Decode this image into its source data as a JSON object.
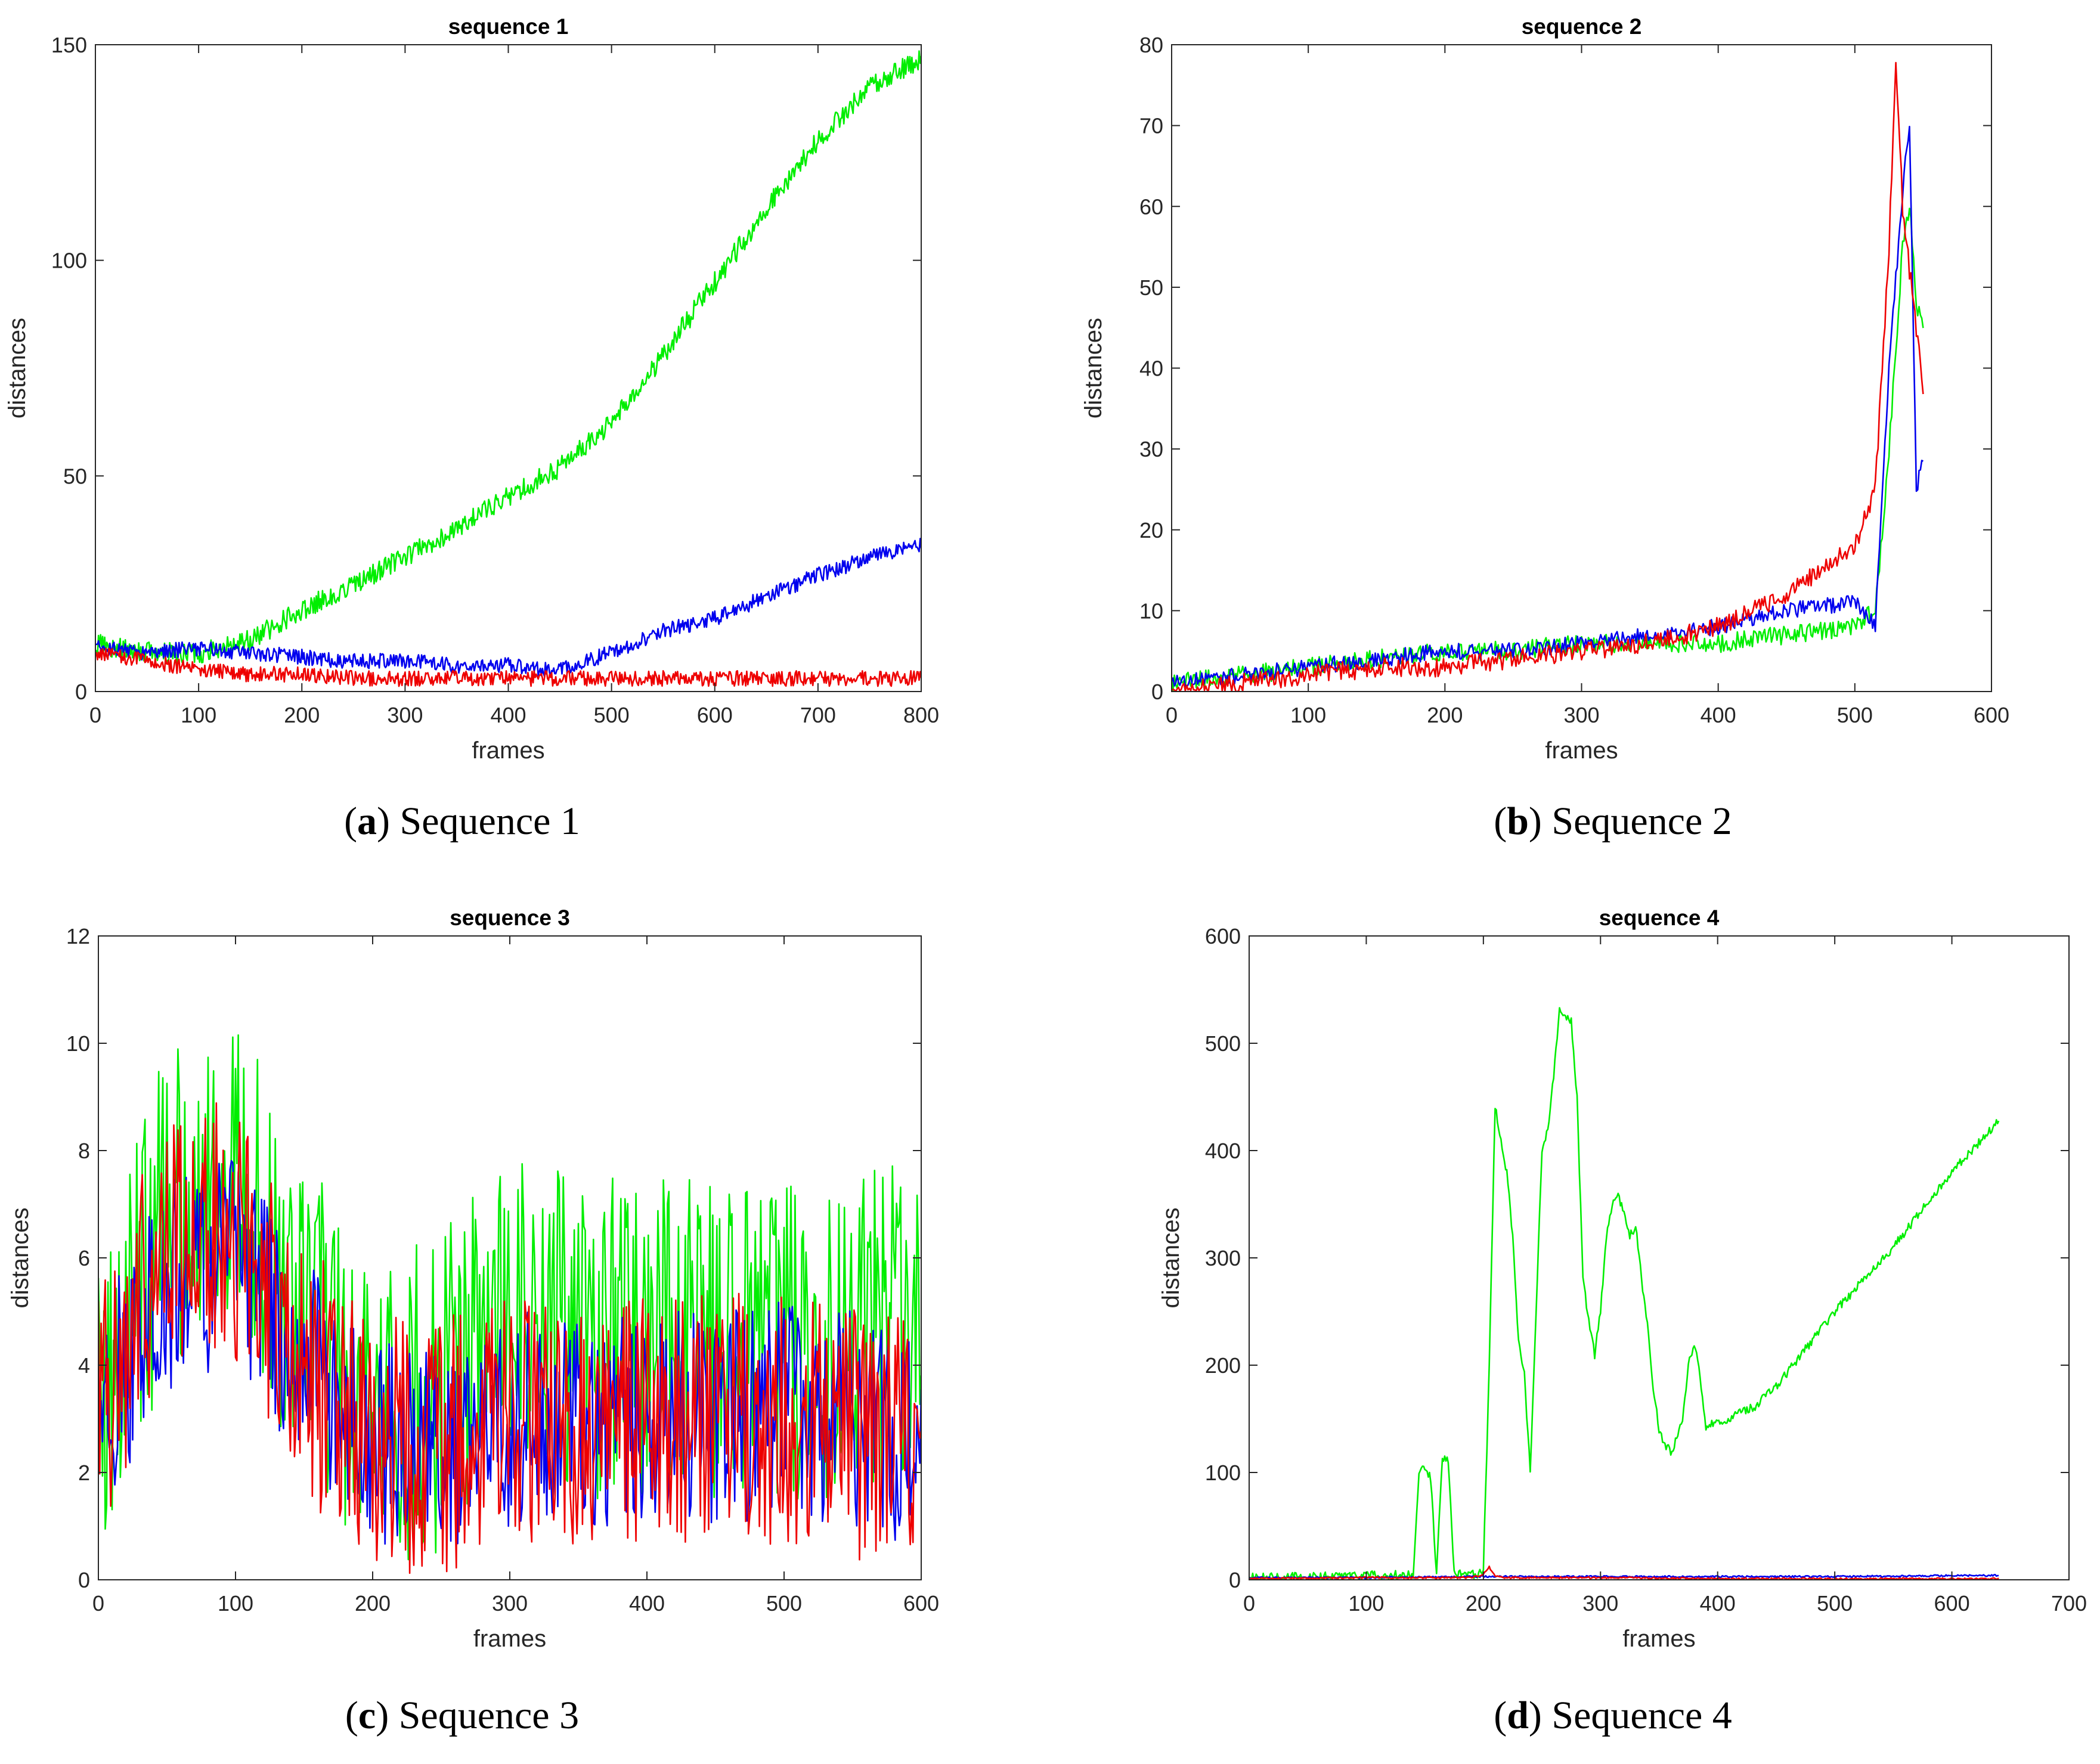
{
  "figure": {
    "captions": [
      {
        "paren_open": "(",
        "letter": "a",
        "paren_close": ")",
        "text": " Sequence 1"
      },
      {
        "paren_open": "(",
        "letter": "b",
        "paren_close": ")",
        "text": " Sequence 2"
      },
      {
        "paren_open": "(",
        "letter": "c",
        "paren_close": ")",
        "text": " Sequence 3"
      },
      {
        "paren_open": "(",
        "letter": "d",
        "paren_close": ")",
        "text": " Sequence 4"
      }
    ]
  },
  "colors": {
    "green": "#00ee00",
    "blue": "#0000ee",
    "red": "#ee0000"
  },
  "chart_data": [
    {
      "type": "line",
      "title": "sequence 1",
      "xlabel": "frames",
      "ylabel": "distances",
      "xlim": [
        0,
        800
      ],
      "ylim": [
        0,
        150
      ],
      "xticks": [
        0,
        100,
        200,
        300,
        400,
        500,
        600,
        700,
        800
      ],
      "yticks": [
        0,
        50,
        100,
        150
      ],
      "xtick_labels": [
        "0",
        "100",
        "200",
        "300",
        "400",
        "500",
        "600",
        "700",
        "800"
      ],
      "ytick_labels": [
        "0",
        "50",
        "100",
        "150"
      ],
      "series": [
        {
          "name": "green",
          "color": "#00ee00",
          "noise": 2.5,
          "x": [
            0,
            50,
            100,
            150,
            200,
            250,
            300,
            350,
            400,
            450,
            500,
            550,
            600,
            650,
            700,
            750,
            800
          ],
          "y": [
            11,
            9,
            9,
            12,
            19,
            25,
            31,
            38,
            45,
            52,
            62,
            78,
            95,
            112,
            128,
            140,
            147
          ]
        },
        {
          "name": "blue",
          "color": "#0000ee",
          "noise": 1.8,
          "x": [
            0,
            50,
            100,
            150,
            200,
            250,
            300,
            350,
            400,
            450,
            500,
            550,
            600,
            650,
            700,
            750,
            800
          ],
          "y": [
            10,
            9,
            10,
            9,
            8,
            7,
            7,
            6,
            6,
            5,
            9,
            14,
            17,
            22,
            27,
            31,
            34
          ]
        },
        {
          "name": "red",
          "color": "#ee0000",
          "noise": 1.8,
          "x": [
            0,
            50,
            100,
            150,
            200,
            250,
            300,
            350,
            400,
            450,
            500,
            550,
            600,
            650,
            700,
            750,
            800
          ],
          "y": [
            9,
            7,
            5,
            4,
            4,
            3,
            3,
            3,
            3,
            3,
            3,
            3,
            3,
            3,
            3,
            3,
            3
          ]
        }
      ]
    },
    {
      "type": "line",
      "title": "sequence 2",
      "xlabel": "frames",
      "ylabel": "distances",
      "xlim": [
        0,
        600
      ],
      "ylim": [
        0,
        80
      ],
      "xticks": [
        0,
        100,
        200,
        300,
        400,
        500,
        600
      ],
      "yticks": [
        0,
        10,
        20,
        30,
        40,
        50,
        60,
        70,
        80
      ],
      "xtick_labels": [
        "0",
        "100",
        "200",
        "300",
        "400",
        "500",
        "600"
      ],
      "ytick_labels": [
        "0",
        "10",
        "20",
        "30",
        "40",
        "50",
        "60",
        "70",
        "80"
      ],
      "series": [
        {
          "name": "green",
          "color": "#00ee00",
          "noise": 1.2,
          "x": [
            0,
            50,
            100,
            150,
            200,
            250,
            300,
            350,
            400,
            450,
            500,
            515,
            525,
            535,
            540,
            545,
            550
          ],
          "y": [
            1,
            2,
            3,
            4,
            5,
            5,
            6,
            6,
            6,
            7,
            8,
            10,
            30,
            55,
            60,
            48,
            45
          ]
        },
        {
          "name": "blue",
          "color": "#0000ee",
          "noise": 1.0,
          "x": [
            0,
            50,
            100,
            150,
            200,
            250,
            300,
            350,
            400,
            450,
            500,
            515,
            525,
            535,
            540,
            545,
            550
          ],
          "y": [
            1,
            2,
            3,
            4,
            5,
            5,
            6,
            7,
            8,
            10,
            11,
            8,
            40,
            62,
            70,
            25,
            29
          ]
        },
        {
          "name": "red",
          "color": "#ee0000",
          "noise": 1.2,
          "x": [
            0,
            50,
            100,
            150,
            200,
            250,
            300,
            350,
            400,
            450,
            500,
            515,
            525,
            530,
            535,
            540,
            545,
            550
          ],
          "y": [
            0,
            1,
            2,
            3,
            3,
            4,
            5,
            6,
            8,
            12,
            18,
            25,
            55,
            78,
            60,
            52,
            45,
            37
          ]
        }
      ]
    },
    {
      "type": "line",
      "title": "sequence 3",
      "xlabel": "frames",
      "ylabel": "distances",
      "xlim": [
        0,
        600
      ],
      "ylim": [
        0,
        12
      ],
      "xticks": [
        0,
        100,
        200,
        300,
        400,
        500,
        600
      ],
      "yticks": [
        0,
        2,
        4,
        6,
        8,
        10,
        12
      ],
      "xtick_labels": [
        "0",
        "100",
        "200",
        "300",
        "400",
        "500",
        "600"
      ],
      "ytick_labels": [
        "0",
        "2",
        "4",
        "6",
        "8",
        "10",
        "12"
      ],
      "series": [
        {
          "name": "green",
          "color": "#00ee00",
          "noise": 3.0,
          "x": [
            0,
            50,
            100,
            150,
            200,
            250,
            300,
            350,
            400,
            450,
            500,
            550,
            600
          ],
          "y": [
            3,
            7,
            7.5,
            5,
            3,
            3.5,
            5,
            4.5,
            4.5,
            4.5,
            4.5,
            4.5,
            5
          ]
        },
        {
          "name": "blue",
          "color": "#0000ee",
          "noise": 2.0,
          "x": [
            0,
            50,
            100,
            150,
            200,
            250,
            300,
            350,
            400,
            450,
            500,
            550,
            600
          ],
          "y": [
            3,
            5.5,
            6,
            4,
            2.5,
            2.5,
            3,
            3,
            3,
            3,
            3.2,
            3,
            2.5
          ]
        },
        {
          "name": "red",
          "color": "#ee0000",
          "noise": 2.4,
          "x": [
            0,
            50,
            100,
            150,
            200,
            250,
            300,
            350,
            400,
            450,
            500,
            550,
            600
          ],
          "y": [
            3,
            6.5,
            6.5,
            4,
            2.5,
            2.5,
            3,
            3,
            3,
            3,
            3,
            2.8,
            2.5
          ]
        }
      ]
    },
    {
      "type": "line",
      "title": "sequence 4",
      "xlabel": "frames",
      "ylabel": "distances",
      "xlim": [
        0,
        700
      ],
      "ylim": [
        0,
        600
      ],
      "xticks": [
        0,
        100,
        200,
        300,
        400,
        500,
        600,
        700
      ],
      "yticks": [
        0,
        100,
        200,
        300,
        400,
        500,
        600
      ],
      "xtick_labels": [
        "0",
        "100",
        "200",
        "300",
        "400",
        "500",
        "600",
        "700"
      ],
      "ytick_labels": [
        "0",
        "100",
        "200",
        "300",
        "400",
        "500",
        "600"
      ],
      "series": [
        {
          "name": "green",
          "color": "#00ee00",
          "noise": 4,
          "x": [
            0,
            140,
            145,
            150,
            155,
            160,
            165,
            170,
            175,
            195,
            200,
            205,
            210,
            215,
            220,
            225,
            230,
            235,
            240,
            245,
            250,
            255,
            260,
            265,
            270,
            275,
            280,
            285,
            290,
            295,
            300,
            305,
            310,
            315,
            320,
            325,
            330,
            335,
            340,
            345,
            350,
            355,
            360,
            365,
            370,
            375,
            380,
            385,
            390,
            395,
            400,
            410,
            420,
            430,
            450,
            500,
            550,
            600,
            640
          ],
          "y": [
            2,
            5,
            100,
            105,
            95,
            5,
            115,
            110,
            5,
            5,
            10,
            200,
            440,
            410,
            380,
            320,
            220,
            190,
            100,
            250,
            400,
            420,
            470,
            530,
            525,
            520,
            450,
            280,
            240,
            210,
            250,
            320,
            350,
            360,
            340,
            320,
            330,
            280,
            240,
            180,
            140,
            125,
            120,
            130,
            150,
            200,
            220,
            190,
            140,
            145,
            145,
            150,
            158,
            160,
            180,
            250,
            310,
            380,
            428
          ]
        },
        {
          "name": "blue",
          "color": "#0000ee",
          "noise": 0.8,
          "x": [
            0,
            100,
            200,
            300,
            400,
            500,
            600,
            640
          ],
          "y": [
            2,
            2,
            3,
            3,
            3,
            3,
            4,
            4
          ]
        },
        {
          "name": "red",
          "color": "#ee0000",
          "noise": 0.8,
          "x": [
            0,
            100,
            190,
            200,
            205,
            210,
            220,
            300,
            400,
            500,
            600,
            640
          ],
          "y": [
            1,
            2,
            2,
            5,
            12,
            3,
            2,
            2,
            1,
            1,
            1,
            1
          ]
        }
      ]
    }
  ]
}
